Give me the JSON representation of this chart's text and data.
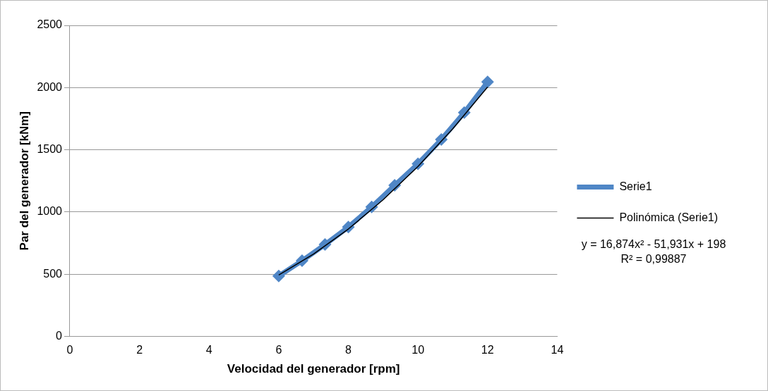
{
  "chart_data": {
    "type": "line",
    "xlabel": "Velocidad del generador [rpm]",
    "ylabel": "Par del generador [kNm]",
    "xlim": [
      0,
      14
    ],
    "xticks": [
      0,
      2,
      4,
      6,
      8,
      10,
      12,
      14
    ],
    "ylim": [
      0,
      2500
    ],
    "yticks": [
      0,
      500,
      1000,
      1500,
      2000,
      2500
    ],
    "grid": "y",
    "legend": "right",
    "marker": "diamond",
    "line_style": "solid",
    "series": [
      {
        "name": "Serie1",
        "color": "#4f86c6",
        "x": [
          6,
          6.67,
          7.33,
          8,
          8.67,
          9.33,
          10,
          10.67,
          11.33,
          12
        ],
        "values": [
          485,
          608,
          738,
          879,
          1040,
          1214,
          1387,
          1582,
          1799,
          2045
        ]
      },
      {
        "name": "Polinómica (Serie1)",
        "type": "line",
        "marker": "none",
        "color": "#000000",
        "x": [
          6,
          7,
          8,
          9,
          10,
          11,
          12
        ],
        "values": [
          493,
          661,
          863,
          1098,
          1366,
          1669,
          2005
        ]
      }
    ],
    "annotations": [
      "y = 16,874x² - 51,931x + 198",
      "R² = 0,99887"
    ]
  }
}
